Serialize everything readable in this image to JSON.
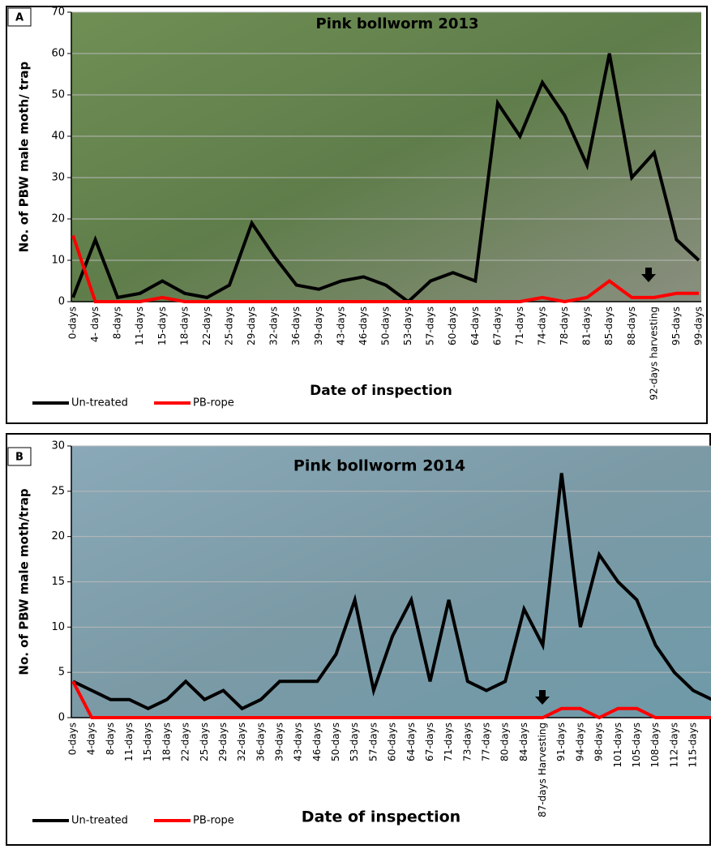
{
  "chart_data": [
    {
      "type": "line",
      "panel": "A",
      "title": "Pink bollworm 2013",
      "y_label": "No. of PBW male moth/ trap",
      "x_label": "Date of inspection",
      "categories": [
        "0-days",
        "4- days",
        "8-days",
        "11-days",
        "15-days",
        "18-days",
        "22-days",
        "25-days",
        "29-days",
        "32-days",
        "36-days",
        "39-days",
        "43-days",
        "46-days",
        "50-days",
        "53-days",
        "57-days",
        "60-days",
        "64-days",
        "67-days",
        "71-days",
        "74-days",
        "78-days",
        "81-days",
        "85-days",
        "88-days",
        "92-days harvesting",
        "95-days",
        "99-days"
      ],
      "series": [
        {
          "name": "Un-treated",
          "color": "#000000",
          "values": [
            1,
            15,
            1,
            2,
            5,
            2,
            1,
            4,
            19,
            11,
            4,
            3,
            5,
            6,
            4,
            0,
            5,
            7,
            5,
            48,
            40,
            53,
            45,
            33,
            60,
            30,
            36,
            15,
            10
          ]
        },
        {
          "name": "PB-rope",
          "color": "#ff0000",
          "values": [
            16,
            0,
            0,
            0,
            1,
            0,
            0,
            0,
            0,
            0,
            0,
            0,
            0,
            0,
            0,
            0,
            0,
            0,
            0,
            0,
            0,
            1,
            0,
            1,
            5,
            1,
            1,
            2,
            2
          ]
        }
      ],
      "ylim": [
        0,
        70
      ],
      "yticks": [
        0,
        10,
        20,
        30,
        40,
        50,
        60,
        70
      ],
      "grid": true,
      "legend": "bottom-left"
    },
    {
      "type": "line",
      "panel": "B",
      "title": "Pink bollworm 2014",
      "y_label": "No. of PBW male moth/trap",
      "x_label": "Date of inspection",
      "categories": [
        "0-days",
        "4-days",
        "8-days",
        "11-days",
        "15-days",
        "18-days",
        "22-days",
        "25-days",
        "29-days",
        "32-days",
        "36-days",
        "39-days",
        "43-days",
        "46-days",
        "50-days",
        "53-days",
        "57-days",
        "60-days",
        "64-days",
        "67-days",
        "71-days",
        "73-days",
        "77-days",
        "80-days",
        "84-days",
        "87-days Harvesting",
        "91-days",
        "94-days",
        "98-days",
        "101-days",
        "105-days",
        "108-days",
        "112-days",
        "115-days",
        null
      ],
      "series": [
        {
          "name": "Un-treated",
          "color": "#000000",
          "values": [
            4,
            3,
            2,
            2,
            1,
            2,
            4,
            2,
            3,
            1,
            2,
            4,
            4,
            4,
            7,
            13,
            3,
            9,
            13,
            4,
            13,
            4,
            3,
            4,
            12,
            8,
            27,
            10,
            18,
            15,
            13,
            8,
            5,
            3,
            2
          ]
        },
        {
          "name": "PB-rope",
          "color": "#ff0000",
          "values": [
            4,
            0,
            0,
            0,
            0,
            0,
            0,
            0,
            0,
            0,
            0,
            0,
            0,
            0,
            0,
            0,
            0,
            0,
            0,
            0,
            0,
            0,
            0,
            0,
            0,
            0,
            1,
            1,
            0,
            1,
            1,
            0,
            0,
            0,
            0
          ]
        }
      ],
      "ylim": [
        0,
        30
      ],
      "yticks": [
        0,
        5,
        10,
        15,
        20,
        25,
        30
      ],
      "grid": true,
      "legend": "bottom-left"
    }
  ]
}
